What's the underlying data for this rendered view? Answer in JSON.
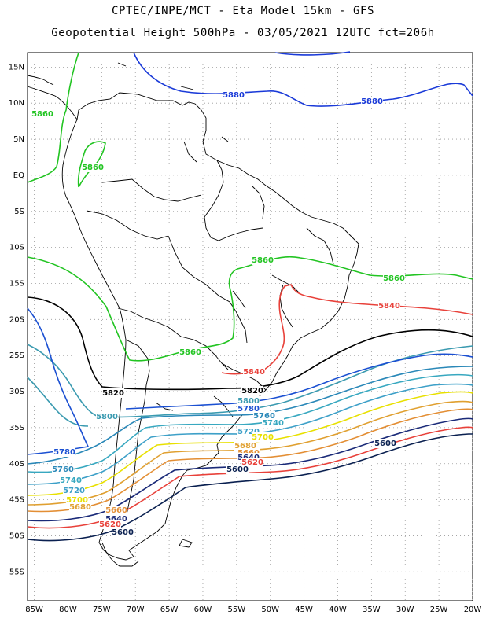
{
  "header": {
    "line1": "CPTEC/INPE/MCT -  Eta Model 15km - GFS",
    "line2": "Geopotential Height 500hPa - 03/05/2021 12UTC fct=206h"
  },
  "map": {
    "lon_range": [
      -86,
      -20
    ],
    "lat_range": [
      -59,
      17
    ],
    "lon_ticks": [
      "85W",
      "80W",
      "75W",
      "70W",
      "65W",
      "60W",
      "55W",
      "50W",
      "45W",
      "40W",
      "35W",
      "30W",
      "25W",
      "20W"
    ],
    "lat_ticks": [
      "15N",
      "10N",
      "5N",
      "EQ",
      "5S",
      "10S",
      "15S",
      "20S",
      "25S",
      "30S",
      "35S",
      "40S",
      "45S",
      "50S",
      "55S"
    ],
    "grid": "dotted",
    "colors": {
      "5880": "#1a3ad8",
      "5860": "#22c422",
      "5840": "#e8413a",
      "5820": "#000000",
      "5800": "#3a9ab0",
      "5780": "#1b50d2",
      "5760": "#2a88b8",
      "5740": "#38a8c0",
      "5720": "#3da0c8",
      "5700": "#e8e000",
      "5680": "#e0a030",
      "5660": "#e38e34",
      "5640": "#1a2a78",
      "5620": "#e8413a",
      "5600": "#0a2050",
      "land": "#000000"
    }
  },
  "contours": [
    {
      "level": "5880",
      "label": "5880"
    },
    {
      "level": "5860",
      "label": "5860"
    },
    {
      "level": "5840",
      "label": "5840"
    },
    {
      "level": "5820",
      "label": "5820"
    },
    {
      "level": "5800",
      "label": "5800"
    },
    {
      "level": "5780",
      "label": "5780"
    },
    {
      "level": "5760",
      "label": "5760"
    },
    {
      "level": "5740",
      "label": "5740"
    },
    {
      "level": "5720",
      "label": "5720"
    },
    {
      "level": "5700",
      "label": "5700"
    },
    {
      "level": "5680",
      "label": "5680"
    },
    {
      "level": "5660",
      "label": "5660"
    },
    {
      "level": "5640",
      "label": "5640"
    },
    {
      "level": "5620",
      "label": "5620"
    },
    {
      "level": "5600",
      "label": "5600"
    }
  ]
}
